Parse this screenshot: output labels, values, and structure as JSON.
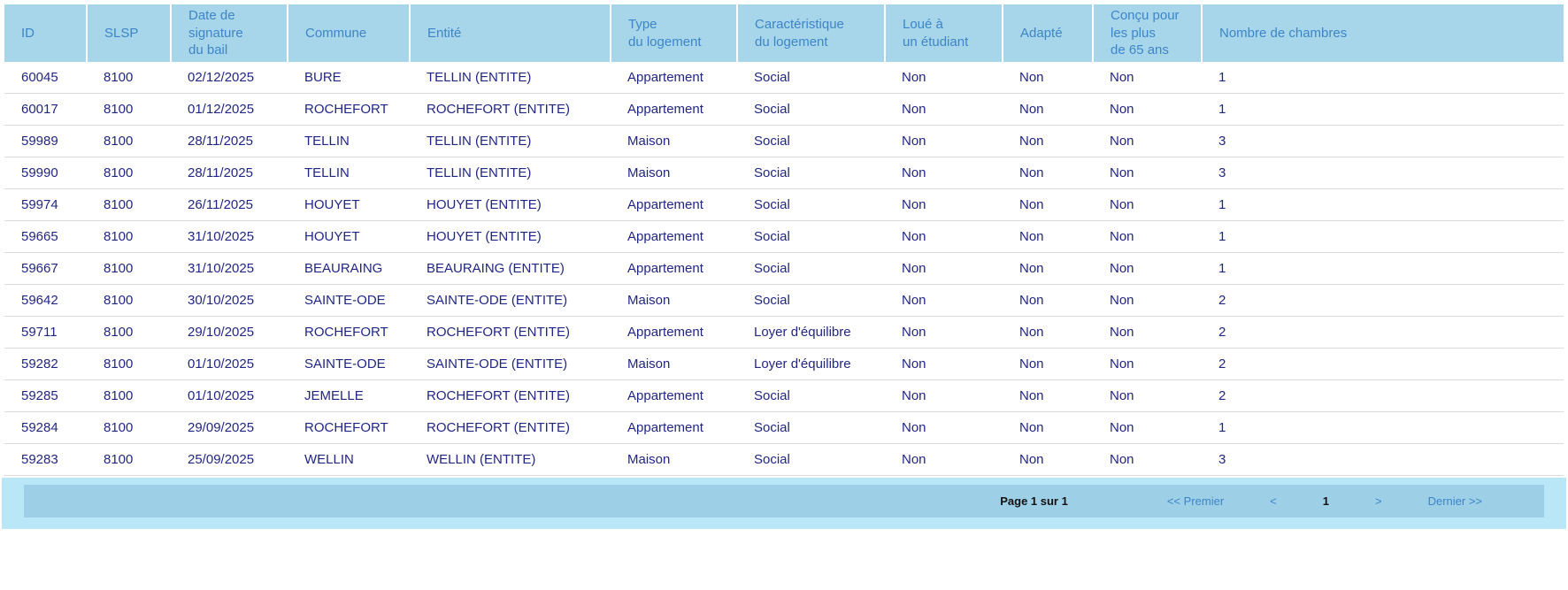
{
  "table": {
    "columns": [
      "ID",
      "SLSP",
      "Date de\nsignature\ndu bail",
      "Commune",
      "Entité",
      "Type\ndu logement",
      "Caractéristique\ndu logement",
      "Loué à\nun étudiant",
      "Adapté",
      "Conçu pour\nles plus\nde 65 ans",
      "Nombre de chambres"
    ],
    "rows": [
      [
        "60045",
        "8100",
        "02/12/2025",
        "BURE",
        "TELLIN (ENTITE)",
        "Appartement",
        "Social",
        "Non",
        "Non",
        "Non",
        "1"
      ],
      [
        "60017",
        "8100",
        "01/12/2025",
        "ROCHEFORT",
        "ROCHEFORT (ENTITE)",
        "Appartement",
        "Social",
        "Non",
        "Non",
        "Non",
        "1"
      ],
      [
        "59989",
        "8100",
        "28/11/2025",
        "TELLIN",
        "TELLIN (ENTITE)",
        "Maison",
        "Social",
        "Non",
        "Non",
        "Non",
        "3"
      ],
      [
        "59990",
        "8100",
        "28/11/2025",
        "TELLIN",
        "TELLIN (ENTITE)",
        "Maison",
        "Social",
        "Non",
        "Non",
        "Non",
        "3"
      ],
      [
        "59974",
        "8100",
        "26/11/2025",
        "HOUYET",
        "HOUYET (ENTITE)",
        "Appartement",
        "Social",
        "Non",
        "Non",
        "Non",
        "1"
      ],
      [
        "59665",
        "8100",
        "31/10/2025",
        "HOUYET",
        "HOUYET (ENTITE)",
        "Appartement",
        "Social",
        "Non",
        "Non",
        "Non",
        "1"
      ],
      [
        "59667",
        "8100",
        "31/10/2025",
        "BEAURAING",
        "BEAURAING (ENTITE)",
        "Appartement",
        "Social",
        "Non",
        "Non",
        "Non",
        "1"
      ],
      [
        "59642",
        "8100",
        "30/10/2025",
        "SAINTE-ODE",
        "SAINTE-ODE (ENTITE)",
        "Maison",
        "Social",
        "Non",
        "Non",
        "Non",
        "2"
      ],
      [
        "59711",
        "8100",
        "29/10/2025",
        "ROCHEFORT",
        "ROCHEFORT (ENTITE)",
        "Appartement",
        "Loyer d'équilibre",
        "Non",
        "Non",
        "Non",
        "2"
      ],
      [
        "59282",
        "8100",
        "01/10/2025",
        "SAINTE-ODE",
        "SAINTE-ODE (ENTITE)",
        "Maison",
        "Loyer d'équilibre",
        "Non",
        "Non",
        "Non",
        "2"
      ],
      [
        "59285",
        "8100",
        "01/10/2025",
        "JEMELLE",
        "ROCHEFORT (ENTITE)",
        "Appartement",
        "Social",
        "Non",
        "Non",
        "Non",
        "2"
      ],
      [
        "59284",
        "8100",
        "29/09/2025",
        "ROCHEFORT",
        "ROCHEFORT (ENTITE)",
        "Appartement",
        "Social",
        "Non",
        "Non",
        "Non",
        "1"
      ],
      [
        "59283",
        "8100",
        "25/09/2025",
        "WELLIN",
        "WELLIN (ENTITE)",
        "Maison",
        "Social",
        "Non",
        "Non",
        "Non",
        "3"
      ]
    ]
  },
  "pagination": {
    "page_info": "Page 1 sur 1",
    "first_label": "<< Premier",
    "prev_label": "<",
    "current_page": "1",
    "next_label": ">",
    "last_label": "Dernier >>"
  },
  "colors": {
    "header_bg": "#a7d6eb",
    "header_text": "#3d85c6",
    "row_text": "#212684",
    "row_divider": "#dadada",
    "footer_outer_bg": "#b9e7f8",
    "footer_bar_bg": "#9dcfe7",
    "link": "#3d85c6"
  }
}
